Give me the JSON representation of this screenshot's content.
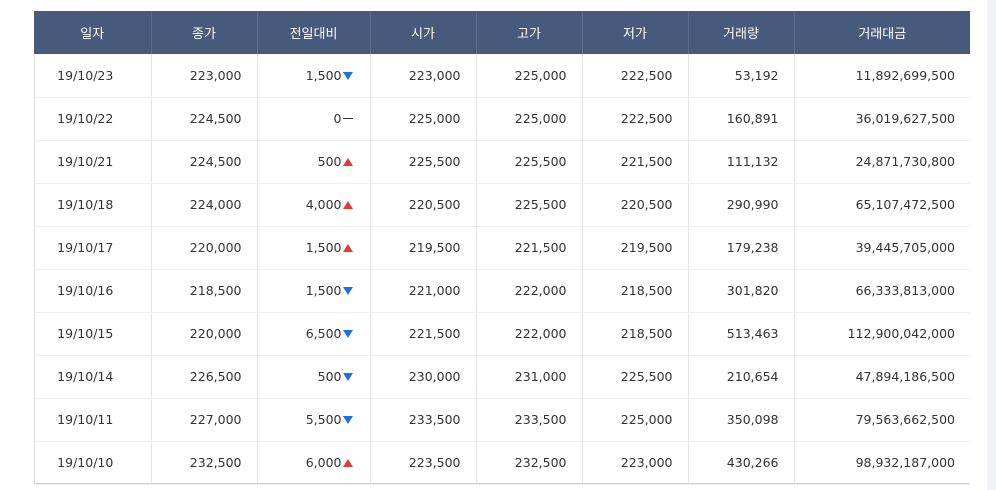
{
  "colors": {
    "header_bg": "#475a7b",
    "header_text": "#ffffff",
    "up": "#e53935",
    "down": "#1e6fe0"
  },
  "table": {
    "headers": [
      "일자",
      "종가",
      "전일대비",
      "시가",
      "고가",
      "저가",
      "거래량",
      "거래대금"
    ],
    "rows": [
      {
        "date": "19/10/23",
        "close": "223,000",
        "change": "1,500",
        "dir": "down",
        "open": "223,000",
        "high": "225,000",
        "low": "222,500",
        "volume": "53,192",
        "amount": "11,892,699,500"
      },
      {
        "date": "19/10/22",
        "close": "224,500",
        "change": "0",
        "dir": "flat",
        "open": "225,000",
        "high": "225,000",
        "low": "222,500",
        "volume": "160,891",
        "amount": "36,019,627,500"
      },
      {
        "date": "19/10/21",
        "close": "224,500",
        "change": "500",
        "dir": "up",
        "open": "225,500",
        "high": "225,500",
        "low": "221,500",
        "volume": "111,132",
        "amount": "24,871,730,800"
      },
      {
        "date": "19/10/18",
        "close": "224,000",
        "change": "4,000",
        "dir": "up",
        "open": "220,500",
        "high": "225,500",
        "low": "220,500",
        "volume": "290,990",
        "amount": "65,107,472,500"
      },
      {
        "date": "19/10/17",
        "close": "220,000",
        "change": "1,500",
        "dir": "up",
        "open": "219,500",
        "high": "221,500",
        "low": "219,500",
        "volume": "179,238",
        "amount": "39,445,705,000"
      },
      {
        "date": "19/10/16",
        "close": "218,500",
        "change": "1,500",
        "dir": "down",
        "open": "221,000",
        "high": "222,000",
        "low": "218,500",
        "volume": "301,820",
        "amount": "66,333,813,000"
      },
      {
        "date": "19/10/15",
        "close": "220,000",
        "change": "6,500",
        "dir": "down",
        "open": "221,500",
        "high": "222,000",
        "low": "218,500",
        "volume": "513,463",
        "amount": "112,900,042,000"
      },
      {
        "date": "19/10/14",
        "close": "226,500",
        "change": "500",
        "dir": "down",
        "open": "230,000",
        "high": "231,000",
        "low": "225,500",
        "volume": "210,654",
        "amount": "47,894,186,500"
      },
      {
        "date": "19/10/11",
        "close": "227,000",
        "change": "5,500",
        "dir": "down",
        "open": "233,500",
        "high": "233,500",
        "low": "225,000",
        "volume": "350,098",
        "amount": "79,563,662,500"
      },
      {
        "date": "19/10/10",
        "close": "232,500",
        "change": "6,000",
        "dir": "up",
        "open": "223,500",
        "high": "232,500",
        "low": "223,000",
        "volume": "430,266",
        "amount": "98,932,187,000"
      }
    ]
  }
}
